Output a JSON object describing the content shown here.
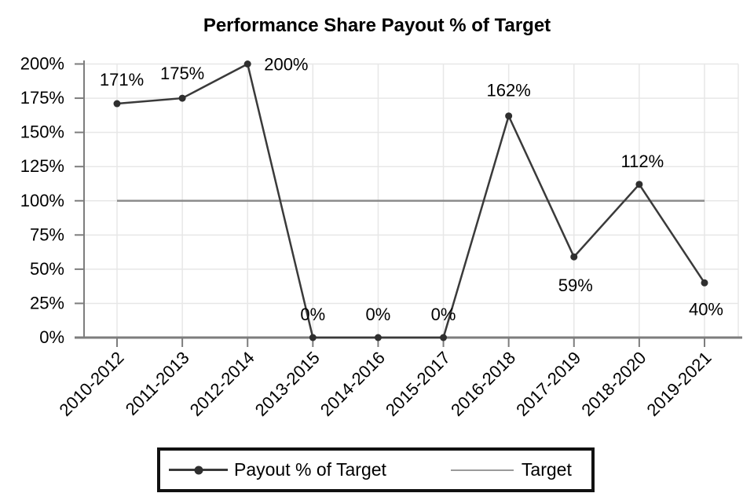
{
  "chart_data": {
    "type": "line",
    "title": "Performance Share Payout % of Target",
    "categories": [
      "2010-2012",
      "2011-2013",
      "2012-2014",
      "2013-2015",
      "2014-2016",
      "2015-2017",
      "2016-2018",
      "2017-2019",
      "2018-2020",
      "2019-2021"
    ],
    "series": [
      {
        "name": "Payout % of Target",
        "values": [
          171,
          175,
          200,
          0,
          0,
          0,
          162,
          59,
          112,
          40
        ],
        "point_labels": [
          "171%",
          "175%",
          "200%",
          "0%",
          "0%",
          "0%",
          "162%",
          "59%",
          "112%",
          "40%"
        ],
        "color": "#3a3a3a",
        "marker": "circle"
      },
      {
        "name": "Target",
        "kind": "constant-line",
        "value": 100,
        "color": "#8c8c8c"
      }
    ],
    "y_axis": {
      "min": 0,
      "max": 200,
      "step": 25,
      "tick_labels": [
        "0%",
        "25%",
        "50%",
        "75%",
        "100%",
        "125%",
        "150%",
        "175%",
        "200%"
      ]
    },
    "x_axis": {
      "tick_rotation_deg": -45
    },
    "grid": true,
    "legend": {
      "position": "bottom",
      "bordered": true,
      "entries": [
        {
          "label": "Payout % of Target",
          "swatch": "line-with-marker"
        },
        {
          "label": "Target",
          "swatch": "line"
        }
      ]
    },
    "colors": {
      "series_line": "#3a3a3a",
      "marker": "#2f2f2f",
      "target_line": "#8c8c8c",
      "grid": "#e7e7e7",
      "axis": "#7d7d7d",
      "text": "#000000",
      "background": "#ffffff",
      "legend_border": "#111111"
    }
  }
}
